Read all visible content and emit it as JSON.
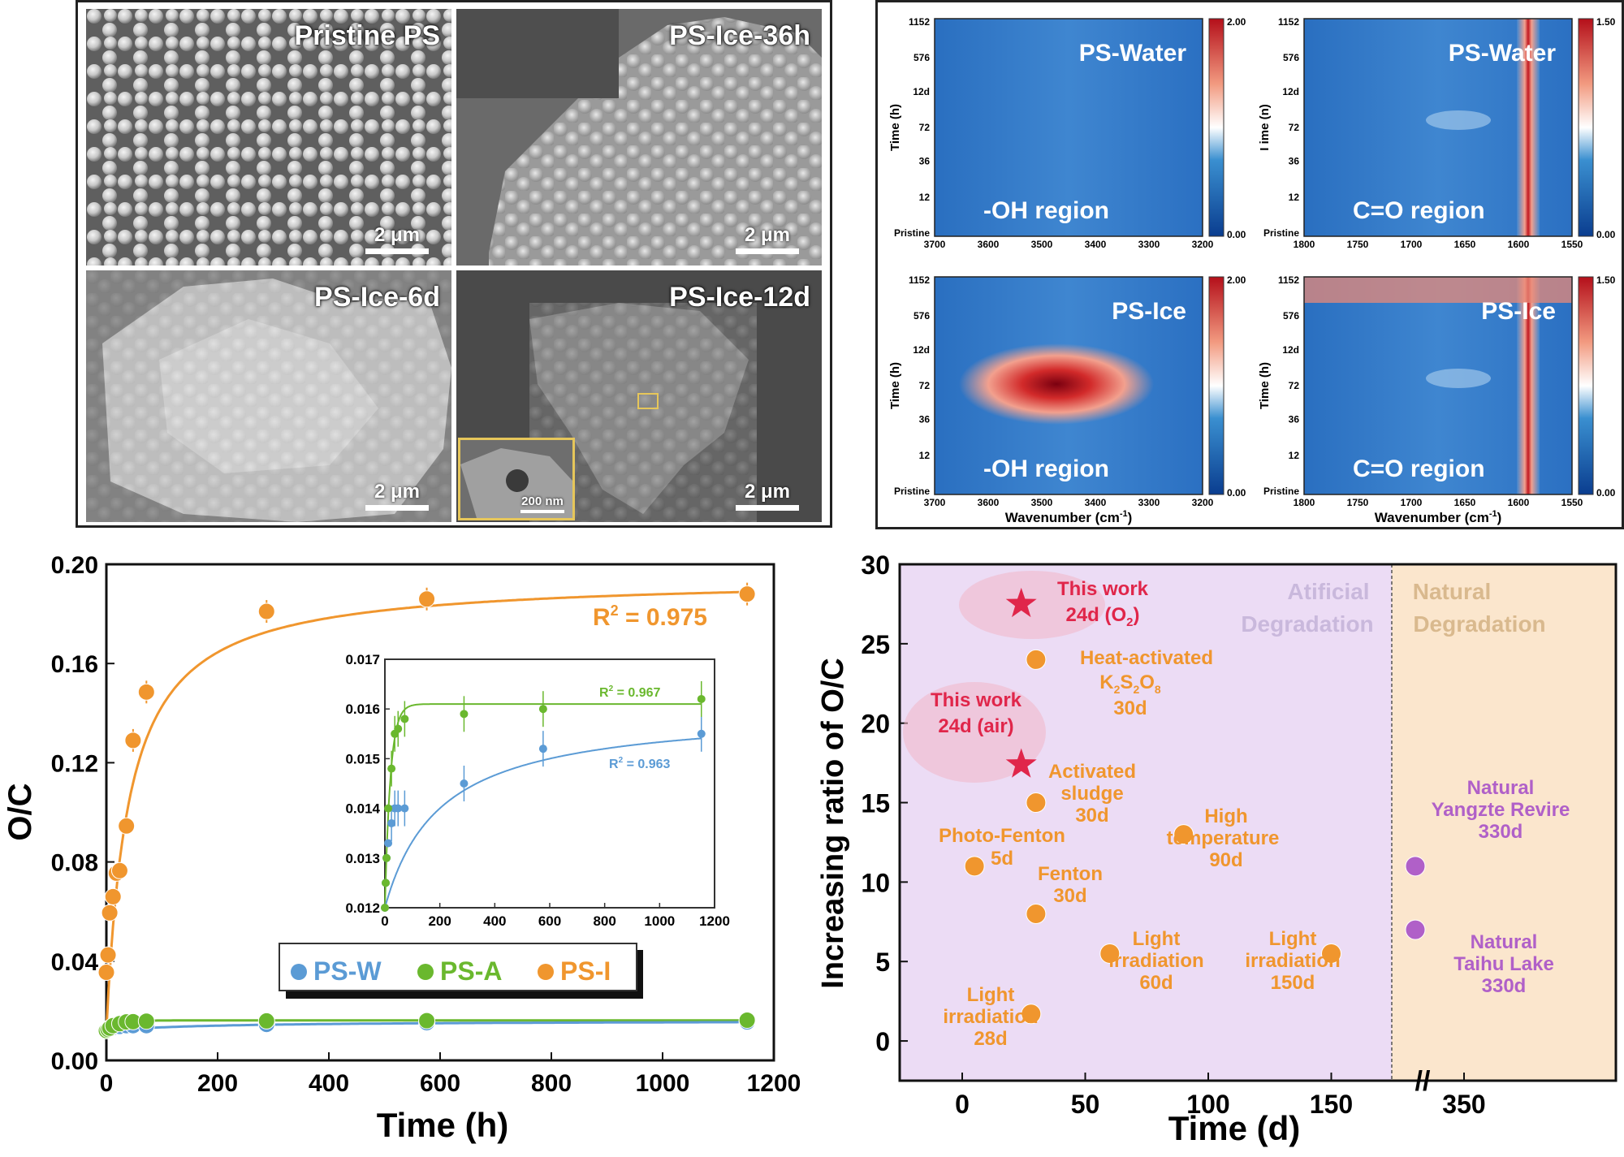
{
  "sem": {
    "panels": [
      {
        "label": "Pristine PS",
        "scale": "2 μm"
      },
      {
        "label": "PS-Ice-36h",
        "scale": "2 μm"
      },
      {
        "label": "PS-Ice-6d",
        "scale": "2 μm"
      },
      {
        "label": "PS-Ice-12d",
        "scale": "2 μm"
      }
    ],
    "inset_scale": "200 nm"
  },
  "ir": {
    "ylabel": "Time (h)",
    "ylabel_partial": "I ime (n)",
    "xlabel": "Wavenumber (cm",
    "xlabel_sup": "-1",
    "xlabel_end": ")",
    "time_ticks": [
      "1152",
      "576",
      "12d",
      "72",
      "36",
      "12",
      "Pristine"
    ],
    "oh_ticks": [
      "3700",
      "3600",
      "3500",
      "3400",
      "3300",
      "3200"
    ],
    "co_ticks": [
      "1800",
      "1750",
      "1700",
      "1650",
      "1600",
      "1550"
    ],
    "maps": [
      {
        "sample": "PS-Water",
        "region": "-OH region",
        "cmax": "2.00",
        "cmin": "0.00"
      },
      {
        "sample": "PS-Water",
        "region": "C=O region",
        "cmax": "1.50",
        "cmin": "0.00"
      },
      {
        "sample": "PS-Ice",
        "region": "-OH region",
        "cmax": "2.00",
        "cmin": "0.00"
      },
      {
        "sample": "PS-Ice",
        "region": "C=O region",
        "cmax": "1.50",
        "cmin": "0.00"
      }
    ]
  },
  "chart_data": [
    {
      "type": "scatter",
      "title": "",
      "xlabel": "Time (h)",
      "ylabel": "O/C",
      "xlim": [
        0,
        1200
      ],
      "ylim": [
        0,
        0.2
      ],
      "xticks": [
        "0",
        "200",
        "400",
        "600",
        "800",
        "1000",
        "1200"
      ],
      "yticks": [
        "0.00",
        "0.04",
        "0.08",
        "0.12",
        "0.16",
        "0.20"
      ],
      "annotation": "R² = 0.975",
      "legend": [
        "PS-W",
        "PS-A",
        "PS-I"
      ],
      "series": [
        {
          "name": "PS-W",
          "color": "#5b9bd5",
          "x": [
            0,
            3,
            6,
            12,
            24,
            36,
            48,
            72,
            288,
            576,
            1152
          ],
          "y": [
            0.012,
            0.0125,
            0.013,
            0.0133,
            0.0137,
            0.014,
            0.014,
            0.014,
            0.0145,
            0.0152,
            0.0155
          ]
        },
        {
          "name": "PS-A",
          "color": "#6ab82e",
          "x": [
            0,
            3,
            6,
            12,
            24,
            36,
            48,
            72,
            288,
            576,
            1152
          ],
          "y": [
            0.012,
            0.0125,
            0.013,
            0.014,
            0.0148,
            0.0155,
            0.0156,
            0.0158,
            0.0159,
            0.016,
            0.0162
          ]
        },
        {
          "name": "PS-I",
          "color": "#f0962e",
          "x": [
            0,
            3,
            6,
            12,
            18,
            24,
            36,
            48,
            72,
            288,
            576,
            1152
          ],
          "y": [
            0.0355,
            0.0425,
            0.0595,
            0.066,
            0.0755,
            0.0765,
            0.0945,
            0.129,
            0.1485,
            0.181,
            0.186,
            0.188
          ]
        }
      ],
      "inset": {
        "xlim": [
          0,
          1200
        ],
        "ylim": [
          0.012,
          0.017
        ],
        "xticks": [
          "0",
          "200",
          "400",
          "600",
          "800",
          "1000",
          "1200"
        ],
        "yticks": [
          "0.012",
          "0.013",
          "0.014",
          "0.015",
          "0.016",
          "0.017"
        ],
        "r2_a": "R² = 0.967",
        "r2_w": "R² = 0.963"
      }
    },
    {
      "type": "scatter",
      "title": "",
      "xlabel": "Time (d)",
      "ylabel": "Increasing ratio of O/C",
      "xlim": [
        -25,
        380
      ],
      "ylim": [
        -2.5,
        30
      ],
      "xticks": [
        "0",
        "50",
        "100",
        "150",
        "350"
      ],
      "yticks": [
        "0",
        "5",
        "10",
        "15",
        "20",
        "25",
        "30"
      ],
      "regions": [
        "Atificial Degradation",
        "Natural Degradation"
      ],
      "points": [
        {
          "label": "This work 24d (O₂)",
          "x": 24,
          "y": 27.5,
          "kind": "star"
        },
        {
          "label": "This work 24d (air)",
          "x": 24,
          "y": 17.4,
          "kind": "star"
        },
        {
          "label": "Heat-activated K₂S₂O₈ 30d",
          "x": 30,
          "y": 24,
          "kind": "artificial"
        },
        {
          "label": "Activated sludge 30d",
          "x": 30,
          "y": 15,
          "kind": "artificial"
        },
        {
          "label": "High temperature 90d",
          "x": 90,
          "y": 13,
          "kind": "artificial"
        },
        {
          "label": "Photo-Fenton 5d",
          "x": 5,
          "y": 11,
          "kind": "artificial"
        },
        {
          "label": "Fenton 30d",
          "x": 30,
          "y": 8,
          "kind": "artificial"
        },
        {
          "label": "Light irradiation 60d",
          "x": 60,
          "y": 5.5,
          "kind": "artificial"
        },
        {
          "label": "Light irradiation 150d",
          "x": 150,
          "y": 5.5,
          "kind": "artificial"
        },
        {
          "label": "Light irradiation 28d",
          "x": 28,
          "y": 1.7,
          "kind": "artificial"
        },
        {
          "label": "Natural Yangzte Revire 330d",
          "x": 330,
          "y": 11,
          "kind": "natural"
        },
        {
          "label": "Natural Taihu Lake 330d",
          "x": 330,
          "y": 7,
          "kind": "natural"
        }
      ]
    }
  ],
  "labels": {
    "r2_main": "R",
    "r2_main_sup": "2",
    "r2_main_val": " = 0.975",
    "inset_r2_a": "R",
    "inset_r2_a_val": " = 0.967",
    "inset_r2_w": "R",
    "inset_r2_w_val": " = 0.963",
    "legend_w": "PS-W",
    "legend_a": "PS-A",
    "legend_i": "PS-I",
    "ylabel_left": "O/C",
    "xlabel_left": "Time (h)",
    "ylabel_right": "Increasing ratio of O/C",
    "xlabel_right": "Time (d)",
    "region_art_1": "Atificial",
    "region_art_2": "Degradation",
    "region_nat_1": "Natural",
    "region_nat_2": "Degradation",
    "tw_o2_1": "This work",
    "tw_o2_2": "24d (O",
    "tw_o2_sub": "2",
    "tw_o2_3": ")",
    "tw_air_1": "This work",
    "tw_air_2": "24d (air)",
    "heat_1": "Heat-activated",
    "heat_2a": "K",
    "heat_2b": "S",
    "heat_2c": "O",
    "heat_sub1": "2",
    "heat_sub2": "2",
    "heat_sub3": "8",
    "heat_3": "30d",
    "sludge_1": "Activated",
    "sludge_2": "sludge",
    "sludge_3": "30d",
    "hightemp_1": "High",
    "hightemp_2": "temperature",
    "hightemp_3": "90d",
    "photo_1": "Photo-Fenton",
    "photo_2": "5d",
    "fenton_1": "Fenton",
    "fenton_2": "30d",
    "light60_1": "Light",
    "light60_2": "irradiation",
    "light60_3": "60d",
    "light150_1": "Light",
    "light150_2": "irradiation",
    "light150_3": "150d",
    "light28_1": "Light",
    "light28_2": "irradiation",
    "light28_3": "28d",
    "yangtze_1": "Natural",
    "yangtze_2": "Yangzte Revire",
    "yangtze_3": "330d",
    "taihu_1": "Natural",
    "taihu_2": "Taihu Lake",
    "taihu_3": "330d"
  },
  "colors": {
    "orange": "#f0962e",
    "green": "#6ab82e",
    "blue": "#5b9bd5",
    "art_bg": "#ecdcf5",
    "nat_bg": "#fbe6cd",
    "star": "#e0264a",
    "purple": "#b060c8"
  }
}
